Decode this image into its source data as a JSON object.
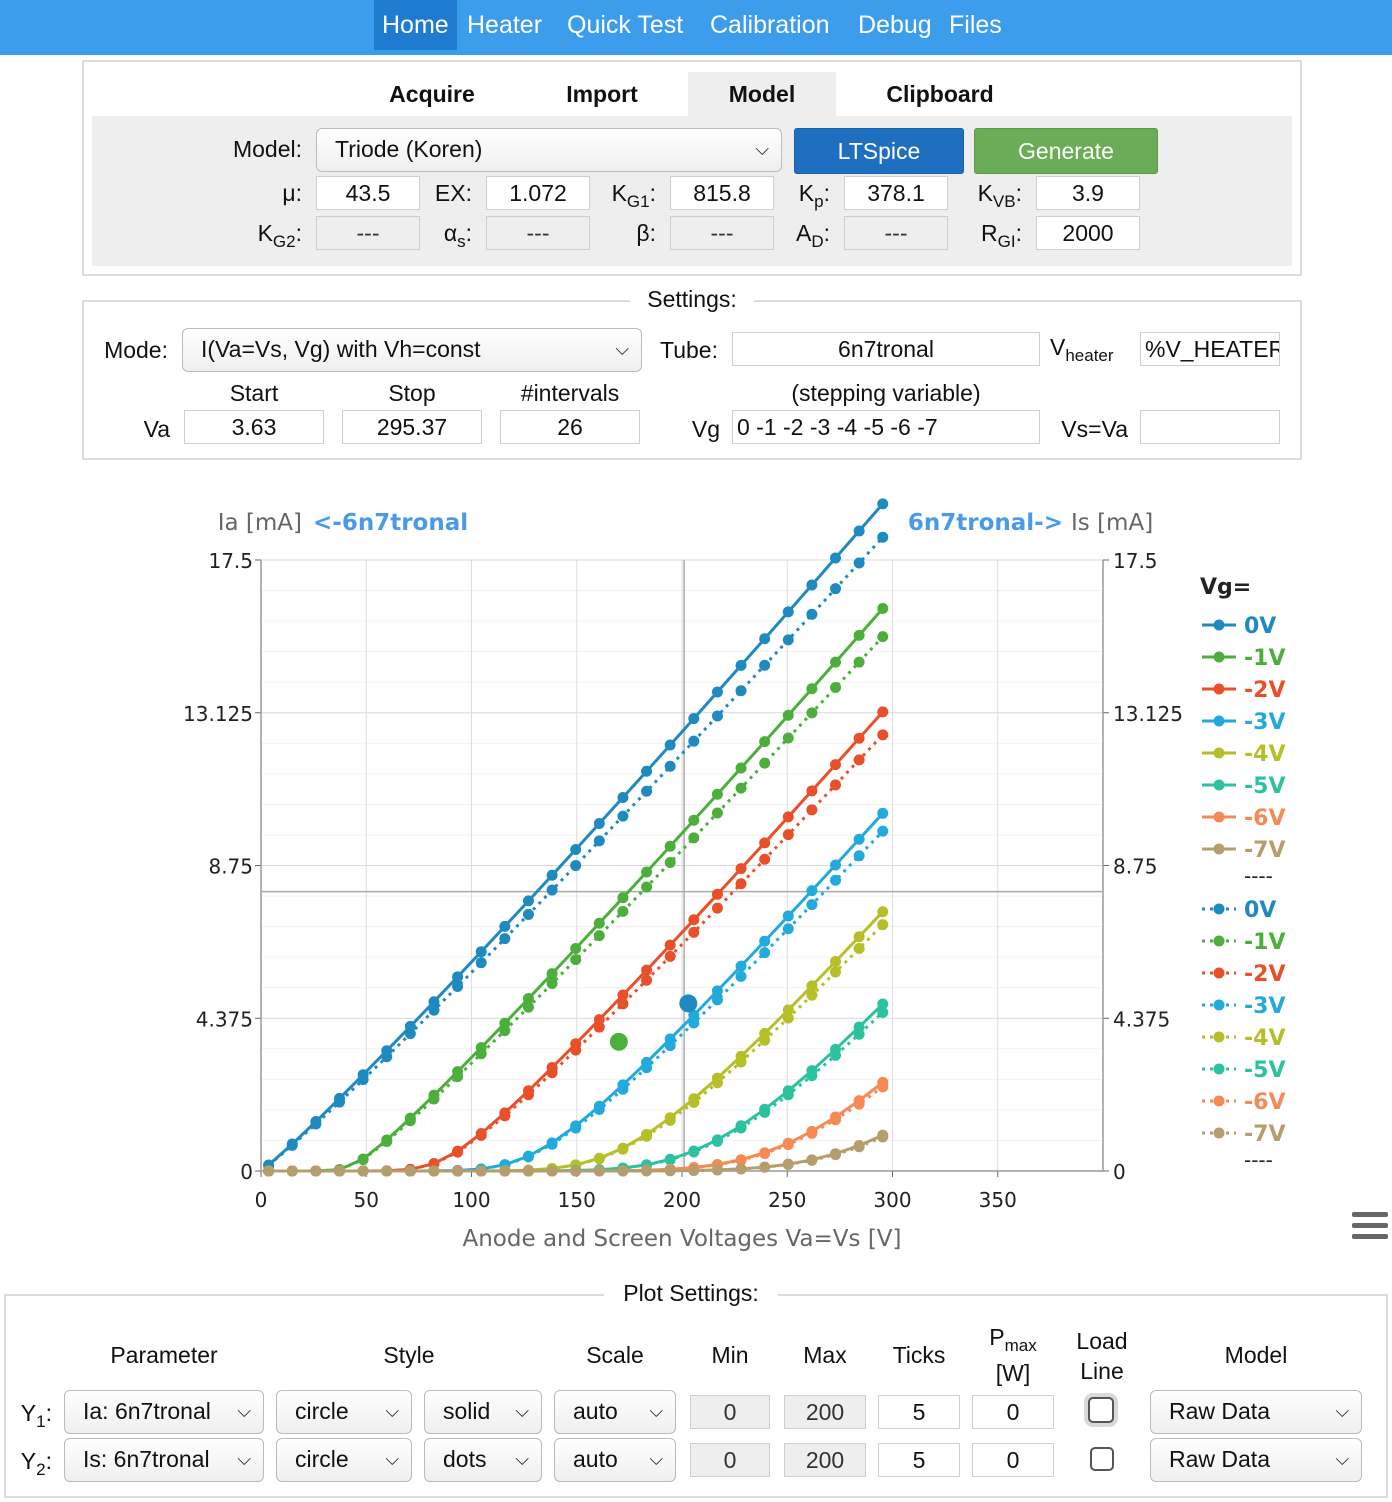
{
  "nav": {
    "items": [
      "Home",
      "Heater",
      "Quick Test",
      "Calibration",
      "Debug",
      "Files"
    ],
    "active": "Home"
  },
  "model_panel": {
    "tabs": [
      "Acquire",
      "Import",
      "Model",
      "Clipboard"
    ],
    "active_tab": "Model",
    "model_label": "Model:",
    "model_value": "Triode (Koren)",
    "ltspice_button": "LTSpice",
    "generate_button": "Generate",
    "params": [
      {
        "label": "μ:",
        "value": "43.5"
      },
      {
        "label": "EX:",
        "value": "1.072"
      },
      {
        "label": "K",
        "sub": "G1",
        "suffix": ":",
        "value": "815.8"
      },
      {
        "label": "K",
        "sub": "p",
        "suffix": ":",
        "value": "378.1"
      },
      {
        "label": "K",
        "sub": "VB",
        "suffix": ":",
        "value": "3.9"
      },
      {
        "label": "K",
        "sub": "G2",
        "suffix": ":",
        "value": "---"
      },
      {
        "label": "α",
        "sub": "s",
        "suffix": ":",
        "value": "---"
      },
      {
        "label": "β:",
        "value": "---"
      },
      {
        "label": "A",
        "sub": "D",
        "suffix": ":",
        "value": "---"
      },
      {
        "label": "R",
        "sub": "GI",
        "suffix": ":",
        "value": "2000"
      }
    ]
  },
  "settings": {
    "legend": "Settings:",
    "mode_label": "Mode:",
    "mode_value": "I(Va=Vs, Vg) with Vh=const",
    "tube_label": "Tube:",
    "tube_value": "6n7tronal",
    "vheater_label": "V",
    "vheater_sub": "heater",
    "vheater_value": "%V_HEATER%",
    "start_label": "Start",
    "stop_label": "Stop",
    "intervals_label": "#intervals",
    "stepping_label": "(stepping variable)",
    "va_label": "Va",
    "va_start": "3.63",
    "va_stop": "295.37",
    "va_intervals": "26",
    "vg_label": "Vg",
    "vg_value": "0 -1 -2 -3 -4 -5 -6 -7",
    "vs_label": "Vs=Va",
    "vs_value": ""
  },
  "chart_data": {
    "type": "line",
    "y1_title": "Ia [mA]",
    "y1_link": "<-6n7tronal",
    "y2_link": "6n7tronal->",
    "y2_title": "Is [mA]",
    "xlabel": "Anode and Screen Voltages Va=Vs [V]",
    "xlim": [
      0,
      400
    ],
    "ylim": [
      0,
      17.5
    ],
    "x_ticks": [
      "0",
      "50",
      "100",
      "150",
      "200",
      "250",
      "300",
      "350"
    ],
    "y_ticks": [
      "0",
      "4.375",
      "8.75",
      "13.125",
      "17.5"
    ],
    "legend_title": "Vg=",
    "legend_separator": "----",
    "curve_x_start": 3.63,
    "curve_x_end": 295.37,
    "curve_points": 27,
    "model": {
      "mu": 43.5,
      "ex": 1.072,
      "kg1": 815.8,
      "kp": 378.1,
      "kvb": 3.9
    },
    "series": [
      {
        "name": "0V",
        "vg": 0,
        "color": "#1f8ac0"
      },
      {
        "name": "-1V",
        "vg": -1,
        "color": "#4caf3c"
      },
      {
        "name": "-2V",
        "vg": -2,
        "color": "#e8502a"
      },
      {
        "name": "-3V",
        "vg": -3,
        "color": "#23aadc"
      },
      {
        "name": "-4V",
        "vg": -4,
        "color": "#b6be28"
      },
      {
        "name": "-5V",
        "vg": -5,
        "color": "#2cc2a0"
      },
      {
        "name": "-6V",
        "vg": -6,
        "color": "#f58a55"
      },
      {
        "name": "-7V",
        "vg": -7,
        "color": "#b59e6e"
      }
    ],
    "y2_scale": 0.95,
    "markers": [
      {
        "x": 203,
        "y": 4.8,
        "color": "#1f8ac0"
      },
      {
        "x": 170,
        "y": 3.7,
        "color": "#4caf3c"
      }
    ],
    "crosshair": {
      "x": 201,
      "y": 8.0
    }
  },
  "plot_settings": {
    "legend": "Plot Settings:",
    "headers": {
      "parameter": "Parameter",
      "style": "Style",
      "scale": "Scale",
      "min": "Min",
      "max": "Max",
      "ticks": "Ticks",
      "pmax": "P",
      "pmax_sub": "max",
      "pmax_unit": "[W]",
      "load1": "Load",
      "load2": "Line",
      "model": "Model"
    },
    "rows": [
      {
        "label": "Y",
        "sub": "1",
        "parameter": "Ia: 6n7tronal",
        "marker": "circle",
        "line": "solid",
        "scale": "auto",
        "min": "0",
        "max": "200",
        "ticks": "5",
        "pmax": "0",
        "model": "Raw Data"
      },
      {
        "label": "Y",
        "sub": "2",
        "parameter": "Is: 6n7tronal",
        "marker": "circle",
        "line": "dots",
        "scale": "auto",
        "min": "0",
        "max": "200",
        "ticks": "5",
        "pmax": "0",
        "model": "Raw Data"
      }
    ]
  },
  "icons": {
    "menu": "hamburger-menu-icon",
    "dropdown": "chevron-down-icon"
  }
}
